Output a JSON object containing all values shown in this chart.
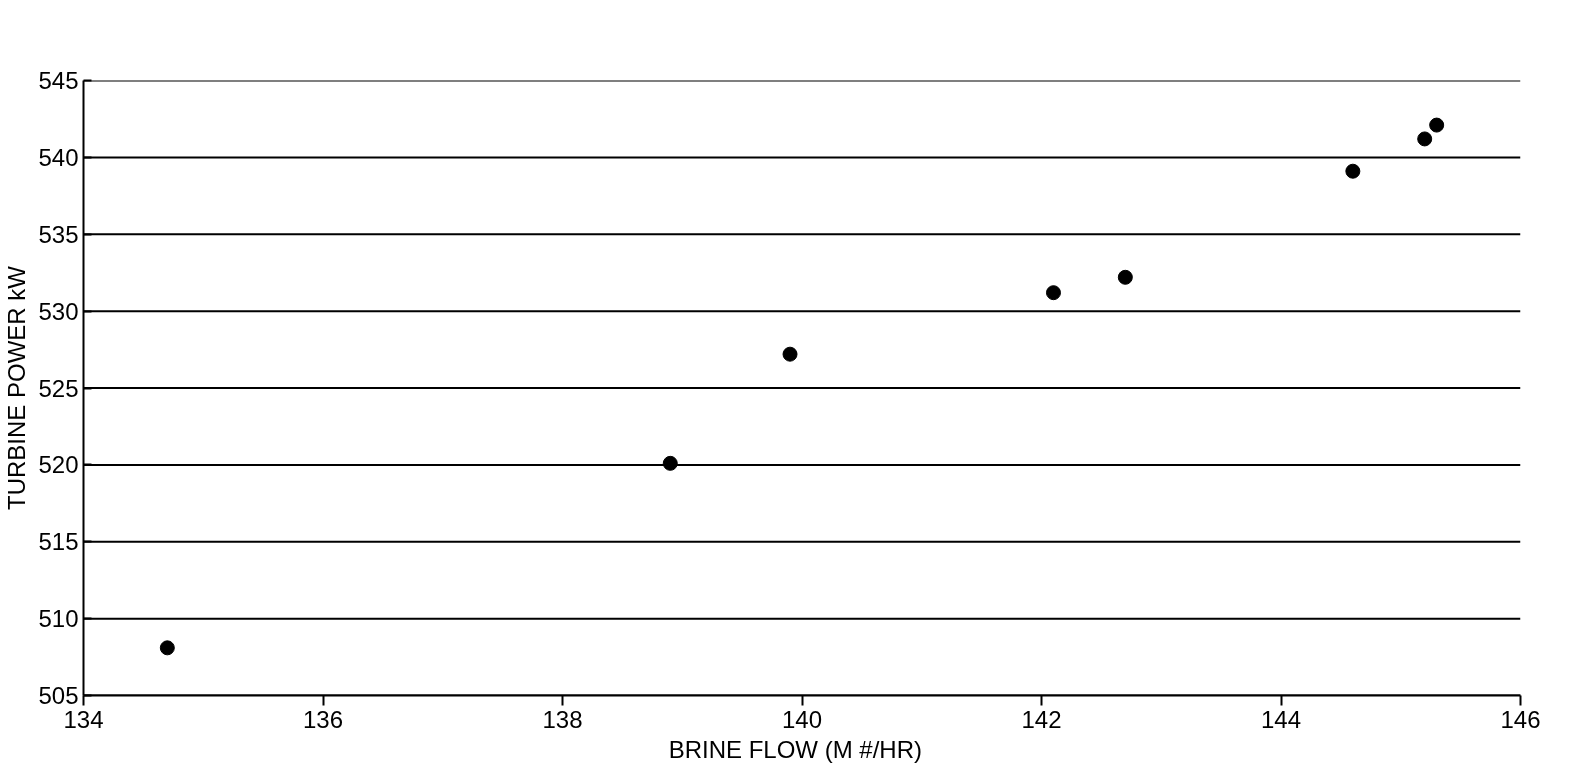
{
  "chart_data": {
    "type": "scatter",
    "xlabel": "BRINE FLOW   (M #/HR)",
    "ylabel": "TURBINE POWER kW",
    "x": [
      134.7,
      138.9,
      139.9,
      142.1,
      142.7,
      144.6,
      145.2,
      145.3
    ],
    "series": [
      {
        "color": "#000000",
        "values": [
          508.1,
          520.1,
          527.2,
          531.2,
          532.2,
          539.1,
          541.2,
          542.1
        ]
      }
    ],
    "xlim": [
      134,
      146
    ],
    "xticks": [
      134,
      136,
      138,
      140,
      142,
      144,
      146
    ],
    "ylim": [
      505,
      545
    ],
    "yticks": [
      505,
      510,
      515,
      520,
      525,
      530,
      535,
      540,
      545
    ],
    "grid": "y",
    "marker": "circle"
  }
}
